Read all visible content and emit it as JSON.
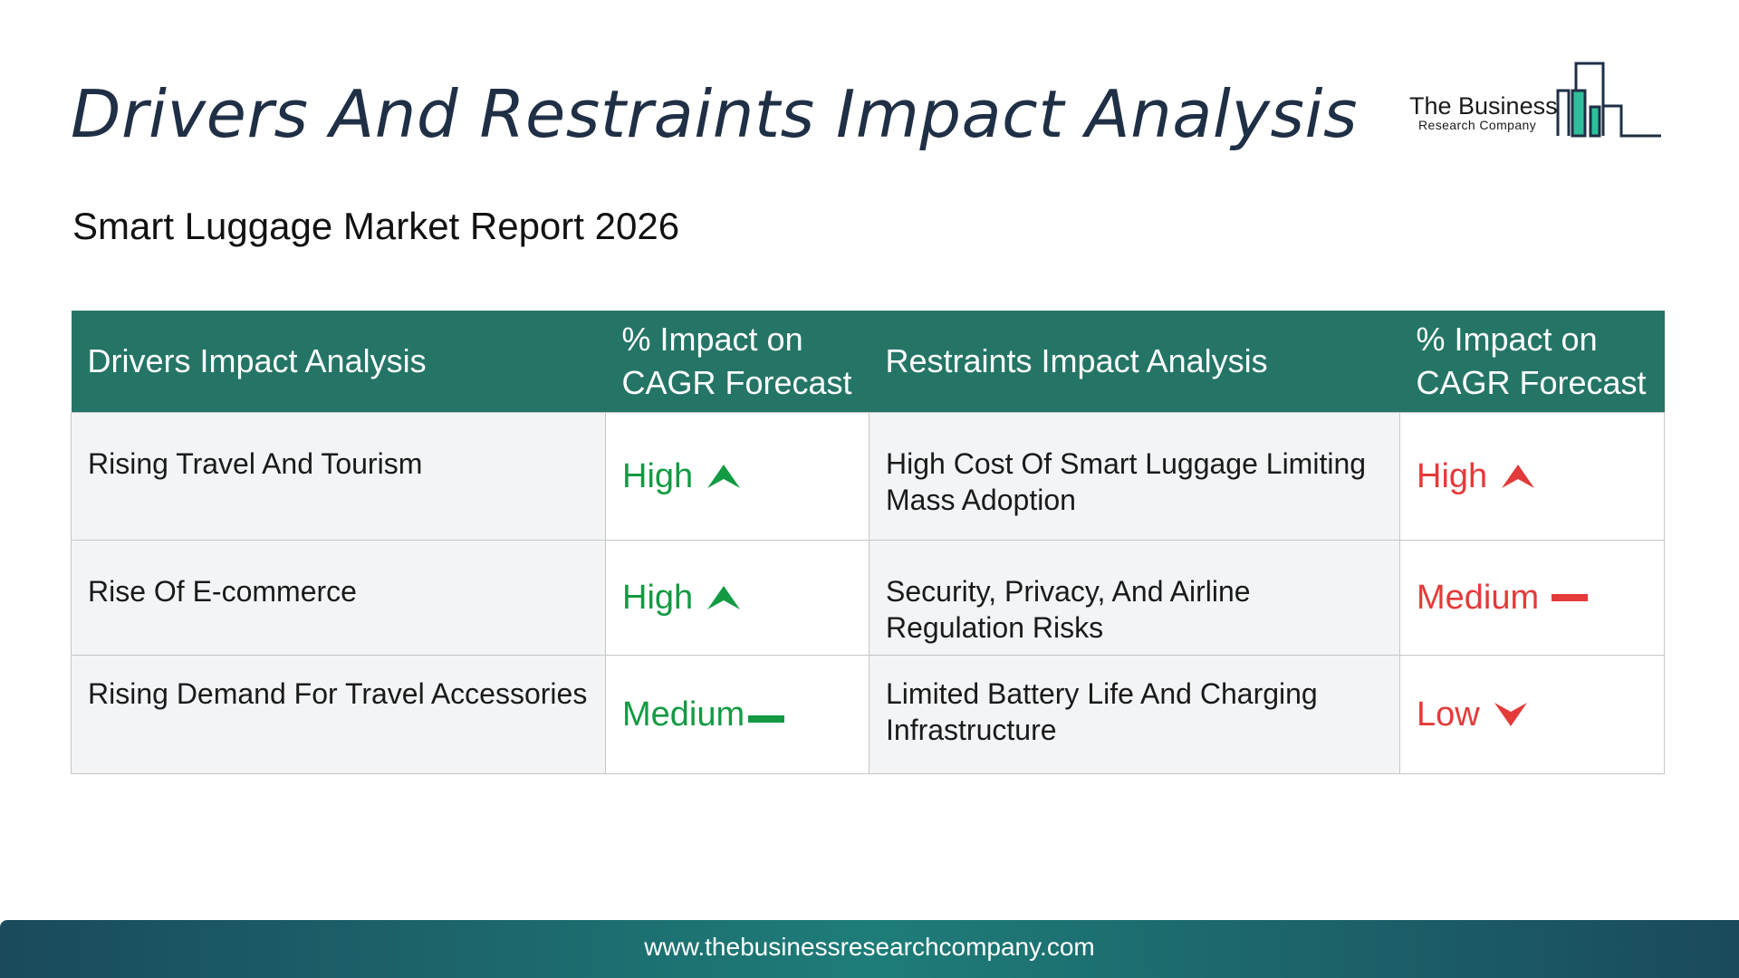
{
  "page": {
    "title": "Drivers And Restraints Impact Analysis",
    "subtitle": "Smart Luggage Market Report 2026"
  },
  "logo": {
    "name": "The Business",
    "tagline": "Research Company"
  },
  "table": {
    "headers": {
      "drivers": "Drivers Impact Analysis",
      "drivers_impact_line1": "% Impact on",
      "drivers_impact_line2": "CAGR Forecast",
      "restraints": "Restraints Impact Analysis",
      "restraints_impact_line1": "% Impact on",
      "restraints_impact_line2": "CAGR Forecast"
    },
    "rows": [
      {
        "driver": "Rising Travel And Tourism",
        "driver_impact": "High",
        "driver_indicator": "arrow-up-icon",
        "restraint": "High Cost Of Smart Luggage Limiting Mass Adoption",
        "restraint_impact": "High",
        "restraint_indicator": "arrow-up-icon"
      },
      {
        "driver": "Rise Of E-commerce",
        "driver_impact": "High",
        "driver_indicator": "arrow-up-icon",
        "restraint": "Security, Privacy, And Airline Regulation Risks",
        "restraint_impact": "Medium",
        "restraint_indicator": "dash-icon"
      },
      {
        "driver": "Rising Demand For Travel Accessories",
        "driver_impact": "Medium",
        "driver_indicator": "dash-icon",
        "restraint": "Limited Battery Life And Charging Infrastructure",
        "restraint_impact": "Low",
        "restraint_indicator": "arrow-down-icon"
      }
    ]
  },
  "colors": {
    "header_bg": "#257566",
    "driver_impact": "#139a43",
    "restraint_impact": "#e33a3a",
    "title": "#1f2f45"
  },
  "footer": {
    "url": "www.thebusinessresearchcompany.com"
  }
}
